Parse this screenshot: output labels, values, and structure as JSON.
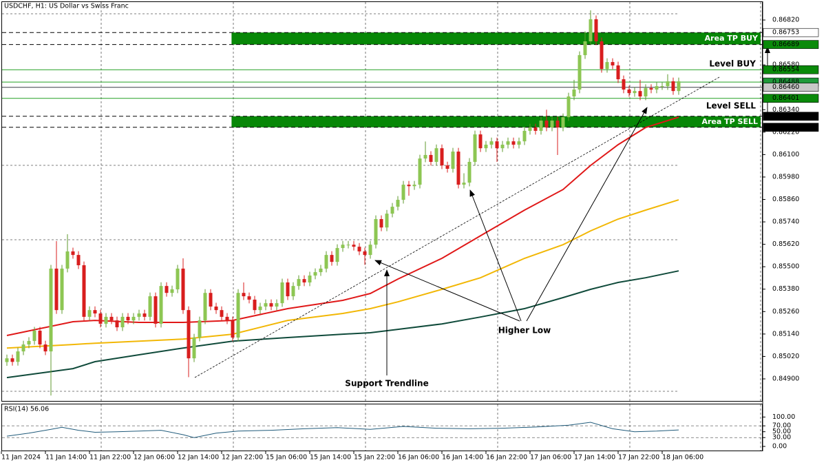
{
  "chart_data": {
    "type": "candlestick",
    "title": "USDCHF, H1:  US Dollar vs Swiss Franc",
    "bull_color": "#8dc653",
    "bear_color": "#d81e1e",
    "xlim": [
      -1.25,
      136.875
    ],
    "ylim": [
      0.84782,
      0.86916
    ],
    "xticks": [
      {
        "value": -1,
        "label": "11 Jan 2024"
      },
      {
        "value": 7,
        "label": "11 Jan 14:00"
      },
      {
        "value": 15,
        "label": "11 Jan 22:00"
      },
      {
        "value": 23,
        "label": "12 Jan 06:00"
      },
      {
        "value": 31,
        "label": "12 Jan 14:00"
      },
      {
        "value": 39,
        "label": "12 Jan 22:00"
      },
      {
        "value": 47,
        "label": "15 Jan 06:00"
      },
      {
        "value": 55,
        "label": "15 Jan 14:00"
      },
      {
        "value": 63,
        "label": "15 Jan 22:00"
      },
      {
        "value": 71,
        "label": "16 Jan 06:00"
      },
      {
        "value": 79,
        "label": "16 Jan 14:00"
      },
      {
        "value": 87,
        "label": "16 Jan 22:00"
      },
      {
        "value": 95,
        "label": "17 Jan 06:00"
      },
      {
        "value": 103,
        "label": "17 Jan 14:00"
      },
      {
        "value": 111,
        "label": "17 Jan 22:00"
      },
      {
        "value": 119,
        "label": "18 Jan 06:00"
      }
    ],
    "yticks": [
      {
        "value": 0.8682,
        "label": "0.86820"
      },
      {
        "value": 0.8658,
        "label": "0.86580"
      },
      {
        "value": 0.8634,
        "label": "0.86340"
      },
      {
        "value": 0.8622,
        "label": "0.86220"
      },
      {
        "value": 0.861,
        "label": "0.86100"
      },
      {
        "value": 0.8598,
        "label": "0.85980"
      },
      {
        "value": 0.8586,
        "label": "0.85860"
      },
      {
        "value": 0.8574,
        "label": "0.85740"
      },
      {
        "value": 0.8562,
        "label": "0.85620"
      },
      {
        "value": 0.855,
        "label": "0.85500"
      },
      {
        "value": 0.8538,
        "label": "0.85380"
      },
      {
        "value": 0.8526,
        "label": "0.85260"
      },
      {
        "value": 0.8514,
        "label": "0.85140"
      },
      {
        "value": 0.8502,
        "label": "0.85020"
      },
      {
        "value": 0.849,
        "label": "0.84900"
      }
    ],
    "candles": [
      [
        0.8499,
        0.8503,
        0.8497,
        0.8501
      ],
      [
        0.8501,
        0.8503,
        0.84971,
        0.84991
      ],
      [
        0.84991,
        0.85067,
        0.84971,
        0.85047
      ],
      [
        0.85047,
        0.85104,
        0.85027,
        0.85084
      ],
      [
        0.85084,
        0.85123,
        0.85064,
        0.85103
      ],
      [
        0.85103,
        0.85178,
        0.85083,
        0.85158
      ],
      [
        0.85158,
        0.85178,
        0.85064,
        0.85084
      ],
      [
        0.85084,
        0.85104,
        0.85027,
        0.85047
      ],
      [
        0.85047,
        0.8551,
        0.84811,
        0.8549
      ],
      [
        0.8549,
        0.85637,
        0.85248,
        0.85268
      ],
      [
        0.85268,
        0.8551,
        0.85248,
        0.8549
      ],
      [
        0.8549,
        0.85674,
        0.8547,
        0.85582
      ],
      [
        0.85582,
        0.85602,
        0.85543,
        0.85563
      ],
      [
        0.85563,
        0.85583,
        0.85488,
        0.85508
      ],
      [
        0.85508,
        0.85528,
        0.85212,
        0.85232
      ],
      [
        0.85232,
        0.85288,
        0.85212,
        0.85268
      ],
      [
        0.85268,
        0.85288,
        0.8523,
        0.8525
      ],
      [
        0.8525,
        0.8527,
        0.85175,
        0.85195
      ],
      [
        0.85195,
        0.85252,
        0.85175,
        0.85232
      ],
      [
        0.85232,
        0.85252,
        0.85193,
        0.85213
      ],
      [
        0.85213,
        0.85233,
        0.85156,
        0.85176
      ],
      [
        0.85176,
        0.85252,
        0.85156,
        0.85232
      ],
      [
        0.85232,
        0.85252,
        0.85193,
        0.85213
      ],
      [
        0.85213,
        0.85252,
        0.85193,
        0.85232
      ],
      [
        0.85232,
        0.8527,
        0.85212,
        0.8525
      ],
      [
        0.8525,
        0.8527,
        0.85212,
        0.85232
      ],
      [
        0.85232,
        0.85362,
        0.85212,
        0.85342
      ],
      [
        0.85342,
        0.85362,
        0.85175,
        0.85195
      ],
      [
        0.85195,
        0.85417,
        0.85175,
        0.85397
      ],
      [
        0.85397,
        0.85417,
        0.8534,
        0.8536
      ],
      [
        0.8536,
        0.85399,
        0.8534,
        0.85379
      ],
      [
        0.85379,
        0.8551,
        0.85359,
        0.8549
      ],
      [
        0.8549,
        0.85545,
        0.85248,
        0.85268
      ],
      [
        0.85268,
        0.85288,
        0.84909,
        0.8501
      ],
      [
        0.8501,
        0.85141,
        0.8499,
        0.85121
      ],
      [
        0.85121,
        0.85233,
        0.85101,
        0.85213
      ],
      [
        0.85213,
        0.8538,
        0.85193,
        0.8536
      ],
      [
        0.8536,
        0.8538,
        0.85267,
        0.85287
      ],
      [
        0.85287,
        0.85307,
        0.85248,
        0.85268
      ],
      [
        0.85268,
        0.85288,
        0.85212,
        0.85232
      ],
      [
        0.85232,
        0.85252,
        0.85193,
        0.85213
      ],
      [
        0.85213,
        0.85233,
        0.85101,
        0.85121
      ],
      [
        0.85121,
        0.8538,
        0.85101,
        0.8536
      ],
      [
        0.8536,
        0.85416,
        0.85322,
        0.85342
      ],
      [
        0.85342,
        0.85362,
        0.85304,
        0.85324
      ],
      [
        0.85324,
        0.85344,
        0.85248,
        0.85268
      ],
      [
        0.85268,
        0.85307,
        0.85248,
        0.85287
      ],
      [
        0.85287,
        0.85325,
        0.85267,
        0.85305
      ],
      [
        0.85305,
        0.85325,
        0.85267,
        0.85287
      ],
      [
        0.85287,
        0.85325,
        0.85267,
        0.85305
      ],
      [
        0.85305,
        0.85436,
        0.85285,
        0.85416
      ],
      [
        0.85416,
        0.85436,
        0.85322,
        0.85342
      ],
      [
        0.85342,
        0.85417,
        0.85322,
        0.85397
      ],
      [
        0.85397,
        0.85454,
        0.85377,
        0.85434
      ],
      [
        0.85434,
        0.85454,
        0.85396,
        0.85416
      ],
      [
        0.85416,
        0.85473,
        0.85396,
        0.85453
      ],
      [
        0.85453,
        0.85491,
        0.85433,
        0.85471
      ],
      [
        0.85471,
        0.8551,
        0.85451,
        0.8549
      ],
      [
        0.8549,
        0.85583,
        0.8547,
        0.85563
      ],
      [
        0.85563,
        0.85583,
        0.85506,
        0.85526
      ],
      [
        0.85526,
        0.8562,
        0.85506,
        0.856
      ],
      [
        0.856,
        0.85638,
        0.8558,
        0.85618
      ],
      [
        0.85618,
        0.85638,
        0.85598,
        0.85618
      ],
      [
        0.85618,
        0.85638,
        0.85587,
        0.85607
      ],
      [
        0.85607,
        0.85627,
        0.85562,
        0.85582
      ],
      [
        0.85582,
        0.85602,
        0.8551,
        0.85563
      ],
      [
        0.85563,
        0.85638,
        0.85543,
        0.85618
      ],
      [
        0.85618,
        0.85775,
        0.85598,
        0.85755
      ],
      [
        0.85755,
        0.85775,
        0.8569,
        0.8571
      ],
      [
        0.8571,
        0.85804,
        0.8569,
        0.85784
      ],
      [
        0.85784,
        0.85841,
        0.85764,
        0.85821
      ],
      [
        0.85821,
        0.85878,
        0.85801,
        0.85858
      ],
      [
        0.85858,
        0.85959,
        0.85838,
        0.85939
      ],
      [
        0.85939,
        0.85959,
        0.8588,
        0.85931
      ],
      [
        0.85931,
        0.85959,
        0.85911,
        0.85939
      ],
      [
        0.85939,
        0.86099,
        0.85919,
        0.86079
      ],
      [
        0.86079,
        0.8617,
        0.86059,
        0.86098
      ],
      [
        0.86098,
        0.86118,
        0.86041,
        0.86061
      ],
      [
        0.86061,
        0.86154,
        0.86041,
        0.86134
      ],
      [
        0.86134,
        0.86154,
        0.86022,
        0.86042
      ],
      [
        0.86042,
        0.86062,
        0.86004,
        0.86024
      ],
      [
        0.86024,
        0.86136,
        0.86004,
        0.86116
      ],
      [
        0.86116,
        0.86136,
        0.85919,
        0.85939
      ],
      [
        0.85939,
        0.86,
        0.85919,
        0.8595
      ],
      [
        0.8595,
        0.86081,
        0.8593,
        0.86061
      ],
      [
        0.86061,
        0.86228,
        0.86041,
        0.86208
      ],
      [
        0.86208,
        0.86228,
        0.86114,
        0.86134
      ],
      [
        0.86134,
        0.86173,
        0.86114,
        0.86153
      ],
      [
        0.86153,
        0.86191,
        0.86133,
        0.86171
      ],
      [
        0.86171,
        0.86191,
        0.86061,
        0.86134
      ],
      [
        0.86134,
        0.86173,
        0.86114,
        0.86153
      ],
      [
        0.86153,
        0.86191,
        0.86133,
        0.86171
      ],
      [
        0.86171,
        0.86191,
        0.86133,
        0.86153
      ],
      [
        0.86153,
        0.86191,
        0.86133,
        0.86171
      ],
      [
        0.86171,
        0.86247,
        0.86151,
        0.86227
      ],
      [
        0.86227,
        0.86265,
        0.86207,
        0.86245
      ],
      [
        0.86245,
        0.86265,
        0.86207,
        0.86227
      ],
      [
        0.86227,
        0.86302,
        0.86207,
        0.86282
      ],
      [
        0.86282,
        0.8634,
        0.86225,
        0.86245
      ],
      [
        0.86245,
        0.86302,
        0.86225,
        0.86282
      ],
      [
        0.86282,
        0.86302,
        0.86098,
        0.86245
      ],
      [
        0.86245,
        0.8632,
        0.86225,
        0.863
      ],
      [
        0.863,
        0.86431,
        0.8628,
        0.86411
      ],
      [
        0.86411,
        0.865,
        0.86391,
        0.86448
      ],
      [
        0.86448,
        0.86652,
        0.86428,
        0.86632
      ],
      [
        0.86632,
        0.8676,
        0.86612,
        0.86706
      ],
      [
        0.86706,
        0.86872,
        0.86686,
        0.86824
      ],
      [
        0.86824,
        0.86844,
        0.86686,
        0.86706
      ],
      [
        0.86706,
        0.86726,
        0.86538,
        0.86558
      ],
      [
        0.86558,
        0.86615,
        0.86538,
        0.86595
      ],
      [
        0.86595,
        0.86615,
        0.86557,
        0.86577
      ],
      [
        0.86577,
        0.86597,
        0.86483,
        0.86503
      ],
      [
        0.86503,
        0.86523,
        0.86428,
        0.86448
      ],
      [
        0.86448,
        0.86468,
        0.86409,
        0.86429
      ],
      [
        0.86429,
        0.8646,
        0.86409,
        0.8644
      ],
      [
        0.8644,
        0.865,
        0.86391,
        0.86411
      ],
      [
        0.86411,
        0.86476,
        0.86391,
        0.86456
      ],
      [
        0.86456,
        0.86476,
        0.86428,
        0.86448
      ],
      [
        0.86448,
        0.86486,
        0.86428,
        0.86466
      ],
      [
        0.86466,
        0.86486,
        0.86446,
        0.86466
      ],
      [
        0.86466,
        0.8653,
        0.86446,
        0.86492
      ],
      [
        0.86492,
        0.86512,
        0.8642,
        0.8644
      ],
      [
        0.8644,
        0.86512,
        0.8642,
        0.86492
      ]
    ],
    "moving_averages": [
      {
        "color": "#0f4a3a",
        "x": [
          0,
          12,
          16,
          24,
          32,
          41,
          51,
          61,
          66,
          71,
          79,
          86,
          94,
          101,
          106,
          111,
          116,
          122
        ],
        "values": [
          0.84907,
          0.84955,
          0.84992,
          0.85029,
          0.85065,
          0.85102,
          0.85121,
          0.85139,
          0.85147,
          0.85165,
          0.85194,
          0.85231,
          0.85276,
          0.85335,
          0.85379,
          0.85416,
          0.85441,
          0.85478
        ]
      },
      {
        "color": "#f2b705",
        "x": [
          0,
          12,
          16,
          24,
          32,
          41,
          51,
          61,
          66,
          71,
          79,
          86,
          94,
          101,
          106,
          111,
          116,
          122
        ],
        "values": [
          0.85065,
          0.85084,
          0.85091,
          0.85102,
          0.85113,
          0.85139,
          0.85213,
          0.8525,
          0.85276,
          0.85312,
          0.85379,
          0.85441,
          0.85545,
          0.85618,
          0.85692,
          0.85755,
          0.85803,
          0.85858
        ]
      },
      {
        "color": "#e01818",
        "x": [
          0,
          12,
          16,
          24,
          32,
          41,
          51,
          61,
          66,
          71,
          79,
          86,
          94,
          101,
          106,
          111,
          116,
          122
        ],
        "values": [
          0.85132,
          0.85206,
          0.85213,
          0.85202,
          0.85202,
          0.85213,
          0.85276,
          0.8532,
          0.85357,
          0.85434,
          0.85545,
          0.85666,
          0.85803,
          0.85913,
          0.86042,
          0.86153,
          0.86245,
          0.863
        ]
      }
    ],
    "levels": [
      {
        "value": 0.86753,
        "line": "dashed",
        "color": "#000000",
        "label_bg": "#ffffff",
        "label_fg": "#000000"
      },
      {
        "value": 0.86689,
        "line": "dashed",
        "color": "#000000",
        "label_bg": "#0a8a0a",
        "label_fg": "#ffffff"
      },
      {
        "value": 0.86554,
        "line": "solid",
        "color": "#22a022",
        "label_bg": "#0a8a0a",
        "label_fg": "#ffffff"
      },
      {
        "value": 0.86488,
        "line": "solid",
        "color": "#22a022",
        "label_bg": "#1f9a3a",
        "label_fg": "#ffffff"
      },
      {
        "value": 0.8646,
        "label": "0.86460",
        "line": "solid",
        "color": "#3a3f46",
        "label_bg": "#c8c8c8",
        "label_fg": "#000000"
      },
      {
        "value": 0.86401,
        "line": "solid",
        "color": "#22a022",
        "label_bg": "#0a8a0a",
        "label_fg": "#ffffff"
      },
      {
        "value": 0.86305,
        "line": "dashed",
        "color": "#000000",
        "label_bg": "#000000",
        "label_fg": "#ffffff"
      },
      {
        "value": 0.86246,
        "line": "dashed",
        "color": "#000000",
        "label_bg": "#000000",
        "label_fg": "#ffffff"
      }
    ],
    "zones": [
      {
        "label": "Area TP BUY",
        "range": [
          0.86753,
          0.86689
        ],
        "start": 40.8,
        "color": "#078707"
      },
      {
        "label": "Area TP SELL",
        "range": [
          0.86305,
          0.86246
        ],
        "start": 40.8,
        "color": "#078707"
      }
    ],
    "annotations": {
      "level_buy": "Level BUY",
      "level_sell": "Level SELL",
      "support": "Support Trendline",
      "higher_low": "Higher Low"
    },
    "rsi": {
      "title": "RSI(14) 56.06",
      "color": "#1f5a7a",
      "ylim": [
        -14,
        143
      ],
      "yticks": [
        {
          "value": 100,
          "label": "100.00"
        },
        {
          "value": 70,
          "label": "70.00"
        },
        {
          "value": 50,
          "label": "50.00"
        },
        {
          "value": 30,
          "label": "30.00"
        },
        {
          "value": 0,
          "label": "0.00"
        }
      ],
      "levels": [
        70,
        30
      ],
      "x": [
        0,
        4,
        8,
        10,
        13,
        16,
        20,
        24,
        28,
        32,
        34,
        38,
        42,
        48,
        54,
        60,
        66,
        72,
        78,
        84,
        90,
        96,
        102,
        106,
        110,
        114,
        118,
        122
      ],
      "values": [
        35,
        45,
        58,
        65,
        55,
        48,
        50,
        52,
        55,
        40,
        30,
        45,
        52,
        55,
        60,
        64,
        58,
        68,
        62,
        60,
        62,
        66,
        72,
        82,
        60,
        50,
        52,
        56.06
      ]
    }
  }
}
